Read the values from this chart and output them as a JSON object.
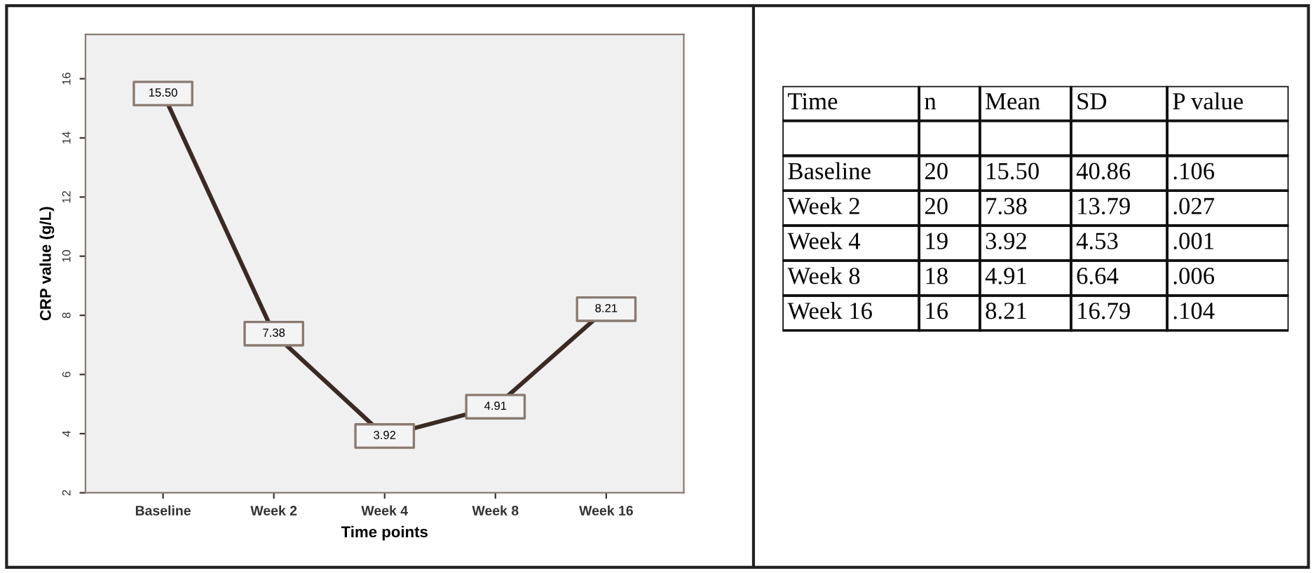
{
  "chart_data": [
    {
      "type": "line",
      "categories": [
        "Baseline",
        "Week 2",
        "Week 4",
        "Week 8",
        "Week 16"
      ],
      "values": [
        15.5,
        7.38,
        3.92,
        4.91,
        8.21
      ],
      "value_labels": [
        "15.50",
        "7.38",
        "3.92",
        "4.91",
        "8.21"
      ],
      "color": "#3b2a24",
      "xlabel": "Time points",
      "ylabel": "CRP value (g/L)",
      "ylim": [
        2,
        17.5
      ],
      "yticks": [
        2,
        4,
        6,
        8,
        10,
        12,
        14,
        16
      ],
      "grid": false,
      "marker": "square",
      "line_style": "solid"
    },
    {
      "type": "other",
      "annotations": [
        "Time",
        "n",
        "Mean",
        "SD",
        "P value",
        "Baseline",
        "20",
        "15.50",
        "40.86",
        ".106",
        "Week 2",
        "20",
        "7.38",
        "13.79",
        ".027",
        "Week 4",
        "19",
        "3.92",
        "4.53",
        ".001",
        "Week 8",
        "18",
        "4.91",
        "6.64",
        ".006",
        "Week 16",
        "16",
        "8.21",
        "16.79",
        ".104"
      ]
    }
  ]
}
